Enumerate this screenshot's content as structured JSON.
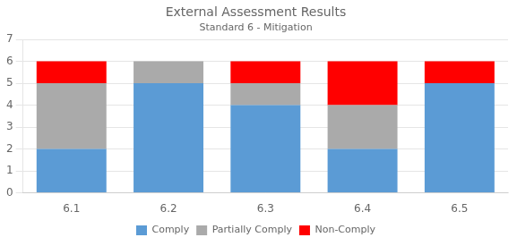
{
  "chart_data": {
    "type": "bar",
    "title": "External Assessment Results",
    "subtitle": "Standard 6 - Mitigation",
    "categories": [
      "6.1",
      "6.2",
      "6.3",
      "6.4",
      "6.5"
    ],
    "series": [
      {
        "name": "Comply",
        "color": "#5B9BD5",
        "values": [
          2,
          5,
          4,
          2,
          5
        ]
      },
      {
        "name": "Partially Comply",
        "color": "#AAAAAA",
        "values": [
          3,
          1,
          1,
          2,
          0
        ]
      },
      {
        "name": "Non-Comply",
        "color": "#FF0000",
        "values": [
          1,
          0,
          1,
          2,
          1
        ]
      }
    ],
    "stacked": true,
    "ylim": [
      0,
      7
    ],
    "yticks": [
      0,
      1,
      2,
      3,
      4,
      5,
      6,
      7
    ],
    "grid": true,
    "legend": "bottom"
  }
}
